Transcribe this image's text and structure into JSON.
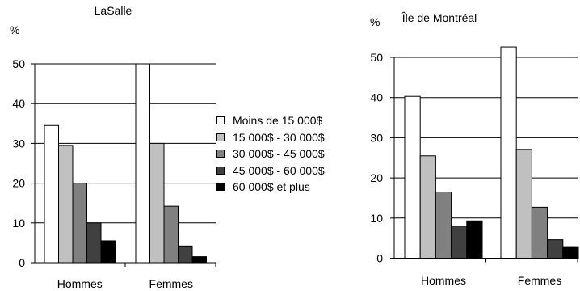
{
  "chart_data": [
    {
      "type": "bar",
      "title": "LaSalle",
      "ylabel": "%",
      "ylim": [
        0,
        50
      ],
      "yticks": [
        0,
        10,
        20,
        30,
        40,
        50
      ],
      "grid": true,
      "categories": [
        "Hommes",
        "Femmes"
      ],
      "series": [
        {
          "name": "Moins de 15 000$",
          "values": [
            34.5,
            50.0
          ]
        },
        {
          "name": "15 000$ - 30 000$",
          "values": [
            29.5,
            30.0
          ]
        },
        {
          "name": "30 000$ - 45 000$",
          "values": [
            20.0,
            14.2
          ]
        },
        {
          "name": "45 000$ - 60 000$",
          "values": [
            10.0,
            4.2
          ]
        },
        {
          "name": "60 000$ et plus",
          "values": [
            5.5,
            1.5
          ]
        }
      ]
    },
    {
      "type": "bar",
      "title": "Île de Montréal",
      "ylabel": "%",
      "ylim": [
        0,
        50
      ],
      "yticks": [
        0,
        10,
        20,
        30,
        40,
        50
      ],
      "grid": true,
      "categories": [
        "Hommes",
        "Femmes"
      ],
      "series": [
        {
          "name": "Moins de 15 000$",
          "values": [
            40.3,
            52.6
          ]
        },
        {
          "name": "15 000$ - 30 000$",
          "values": [
            25.5,
            27.1
          ]
        },
        {
          "name": "30 000$ - 45 000$",
          "values": [
            16.5,
            12.7
          ]
        },
        {
          "name": "45 000$ - 60 000$",
          "values": [
            8.0,
            4.6
          ]
        },
        {
          "name": "60 000$ et plus",
          "values": [
            9.3,
            2.9
          ]
        }
      ]
    }
  ],
  "legend": {
    "placement": "center",
    "colors": [
      "#ffffff",
      "#c0c0c0",
      "#808080",
      "#404040",
      "#000000"
    ]
  }
}
